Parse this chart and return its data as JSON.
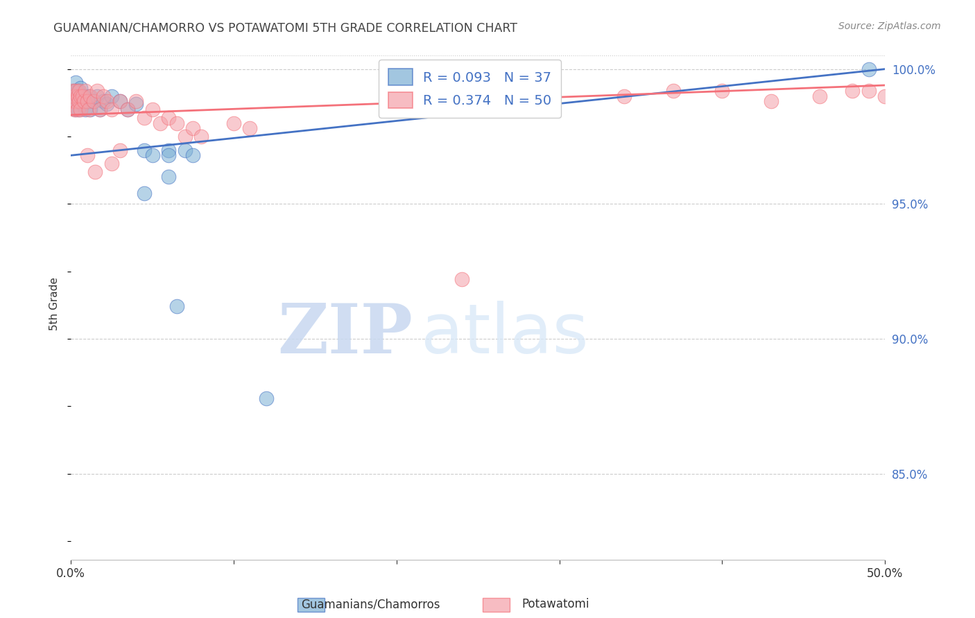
{
  "title": "GUAMANIAN/CHAMORRO VS POTAWATOMI 5TH GRADE CORRELATION CHART",
  "source": "Source: ZipAtlas.com",
  "ylabel": "5th Grade",
  "x_min": 0.0,
  "x_max": 0.5,
  "y_min": 0.818,
  "y_max": 1.008,
  "x_tick_positions": [
    0.0,
    0.1,
    0.2,
    0.3,
    0.4,
    0.5
  ],
  "x_tick_labels": [
    "0.0%",
    "",
    "",
    "",
    "",
    "50.0%"
  ],
  "y_ticks_right": [
    0.85,
    0.9,
    0.95,
    1.0
  ],
  "y_tick_labels_right": [
    "85.0%",
    "90.0%",
    "95.0%",
    "100.0%"
  ],
  "blue_color": "#7BAFD4",
  "pink_color": "#F4A0A8",
  "blue_line_color": "#4472C4",
  "pink_line_color": "#F4717A",
  "blue_R": 0.093,
  "blue_N": 37,
  "pink_R": 0.374,
  "pink_N": 50,
  "legend_label_blue": "Guamanians/Chamorros",
  "legend_label_pink": "Potawatomi",
  "watermark_zip": "ZIP",
  "watermark_atlas": "atlas",
  "grid_color": "#CCCCCC",
  "background_color": "#FFFFFF",
  "title_color": "#444444",
  "right_axis_color": "#4472C4",
  "blue_x": [
    0.001,
    0.002,
    0.002,
    0.003,
    0.003,
    0.004,
    0.004,
    0.005,
    0.005,
    0.006,
    0.006,
    0.007,
    0.008,
    0.009,
    0.01,
    0.011,
    0.012,
    0.014,
    0.016,
    0.018,
    0.02,
    0.022,
    0.025,
    0.03,
    0.035,
    0.04,
    0.045,
    0.05,
    0.06,
    0.07,
    0.075,
    0.06,
    0.49,
    0.045,
    0.065,
    0.12,
    0.06
  ],
  "blue_y": [
    0.99,
    0.988,
    0.992,
    0.985,
    0.995,
    0.988,
    0.992,
    0.985,
    0.99,
    0.988,
    0.993,
    0.987,
    0.99,
    0.985,
    0.988,
    0.99,
    0.985,
    0.988,
    0.99,
    0.985,
    0.988,
    0.987,
    0.99,
    0.988,
    0.985,
    0.987,
    0.97,
    0.968,
    0.97,
    0.97,
    0.968,
    0.968,
    1.0,
    0.954,
    0.912,
    0.878,
    0.96
  ],
  "pink_x": [
    0.001,
    0.001,
    0.002,
    0.002,
    0.003,
    0.003,
    0.004,
    0.004,
    0.005,
    0.005,
    0.006,
    0.006,
    0.007,
    0.008,
    0.009,
    0.01,
    0.011,
    0.012,
    0.014,
    0.016,
    0.018,
    0.02,
    0.022,
    0.025,
    0.03,
    0.035,
    0.04,
    0.045,
    0.05,
    0.055,
    0.06,
    0.065,
    0.07,
    0.075,
    0.08,
    0.1,
    0.11,
    0.34,
    0.37,
    0.4,
    0.43,
    0.46,
    0.48,
    0.49,
    0.5,
    0.03,
    0.025,
    0.015,
    0.24,
    0.01
  ],
  "pink_y": [
    0.992,
    0.988,
    0.99,
    0.985,
    0.992,
    0.988,
    0.99,
    0.985,
    0.992,
    0.988,
    0.99,
    0.985,
    0.99,
    0.988,
    0.992,
    0.988,
    0.985,
    0.99,
    0.988,
    0.992,
    0.985,
    0.99,
    0.988,
    0.985,
    0.988,
    0.985,
    0.988,
    0.982,
    0.985,
    0.98,
    0.982,
    0.98,
    0.975,
    0.978,
    0.975,
    0.98,
    0.978,
    0.99,
    0.992,
    0.992,
    0.988,
    0.99,
    0.992,
    0.992,
    0.99,
    0.97,
    0.965,
    0.962,
    0.922,
    0.968
  ]
}
